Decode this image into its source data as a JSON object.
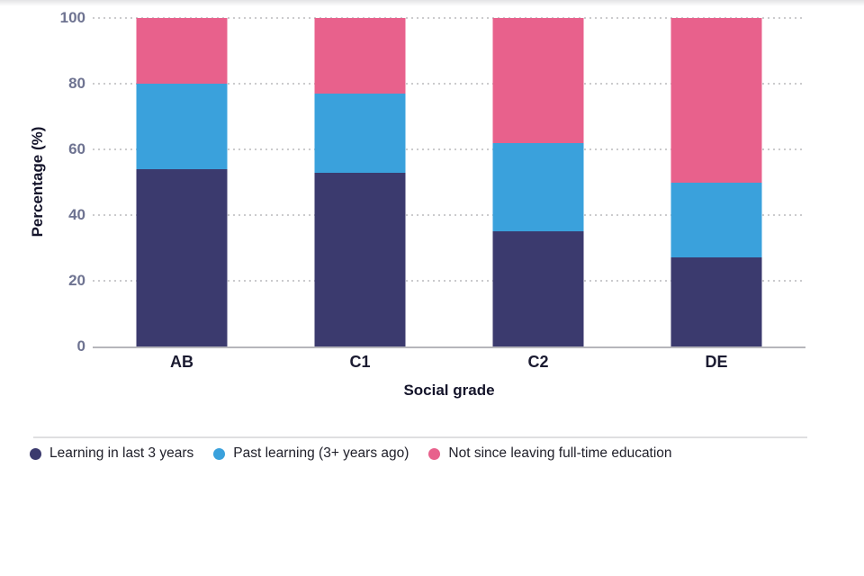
{
  "chart_data": {
    "type": "bar",
    "stacked": true,
    "orientation": "vertical",
    "categories": [
      "AB",
      "C1",
      "C2",
      "DE"
    ],
    "series": [
      {
        "name": "Learning in last 3 years",
        "color": "#3b3a6e",
        "values": [
          54,
          53,
          35,
          27
        ]
      },
      {
        "name": "Past learning (3+ years ago)",
        "color": "#3aa1dc",
        "values": [
          26,
          24,
          27,
          23
        ]
      },
      {
        "name": "Not since leaving full-time education",
        "color": "#e8618c",
        "values": [
          20,
          23,
          38,
          50
        ]
      }
    ],
    "title": "",
    "xlabel": "Social grade",
    "ylabel": "Percentage (%)",
    "yticks": [
      0,
      20,
      40,
      60,
      80,
      100
    ],
    "ylim": [
      0,
      100
    ],
    "grid": "dotted horizontal gridlines at 20% intervals, hidden behind bars",
    "legend_position": "bottom-left"
  },
  "style_colors": {
    "gridline": "#cbcbcd",
    "axis_line": "#b6b6bb",
    "tick_text": "#6e7391",
    "category_text": "#1b1b31",
    "axis_title_text": "#15152b",
    "legend_text": "#21212b",
    "divider": "#dfdfe1"
  }
}
